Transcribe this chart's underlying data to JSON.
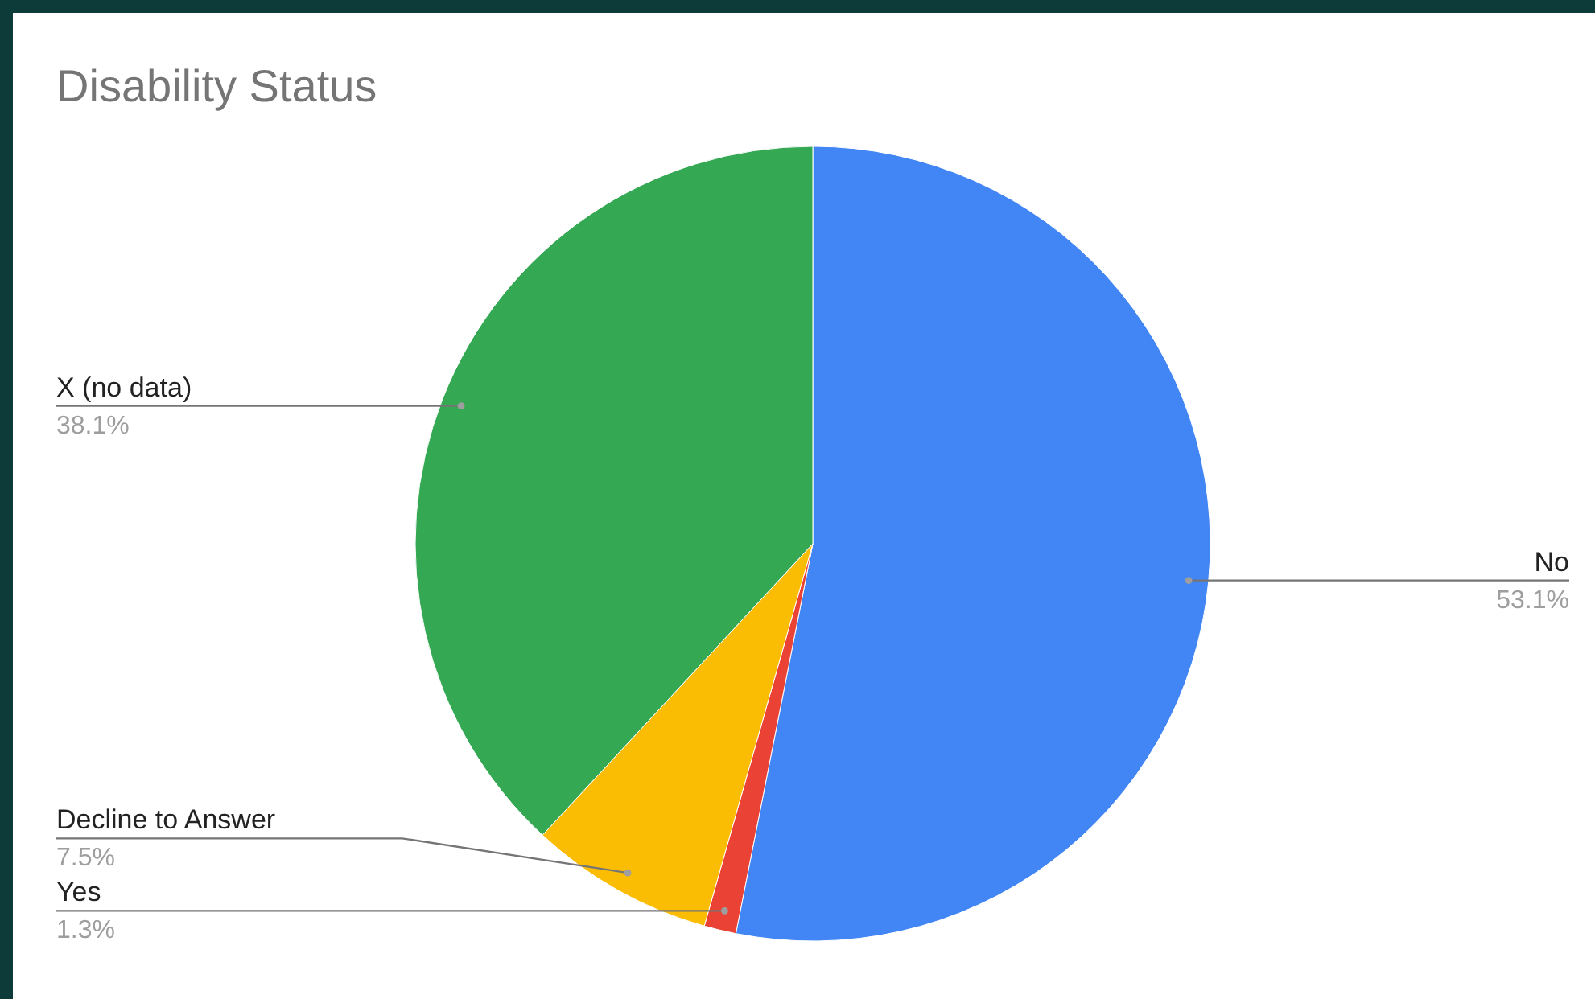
{
  "chart_data": {
    "type": "pie",
    "title": "Disability Status",
    "categories": [
      "No",
      "Yes",
      "Decline to Answer",
      "X (no data)"
    ],
    "values": [
      53.1,
      1.3,
      7.5,
      38.1
    ],
    "value_labels": [
      "53.1%",
      "1.3%",
      "7.5%",
      "38.1%"
    ],
    "colors": [
      "#4285f4",
      "#ea4335",
      "#fbbc04",
      "#34a853"
    ],
    "legend": false
  }
}
